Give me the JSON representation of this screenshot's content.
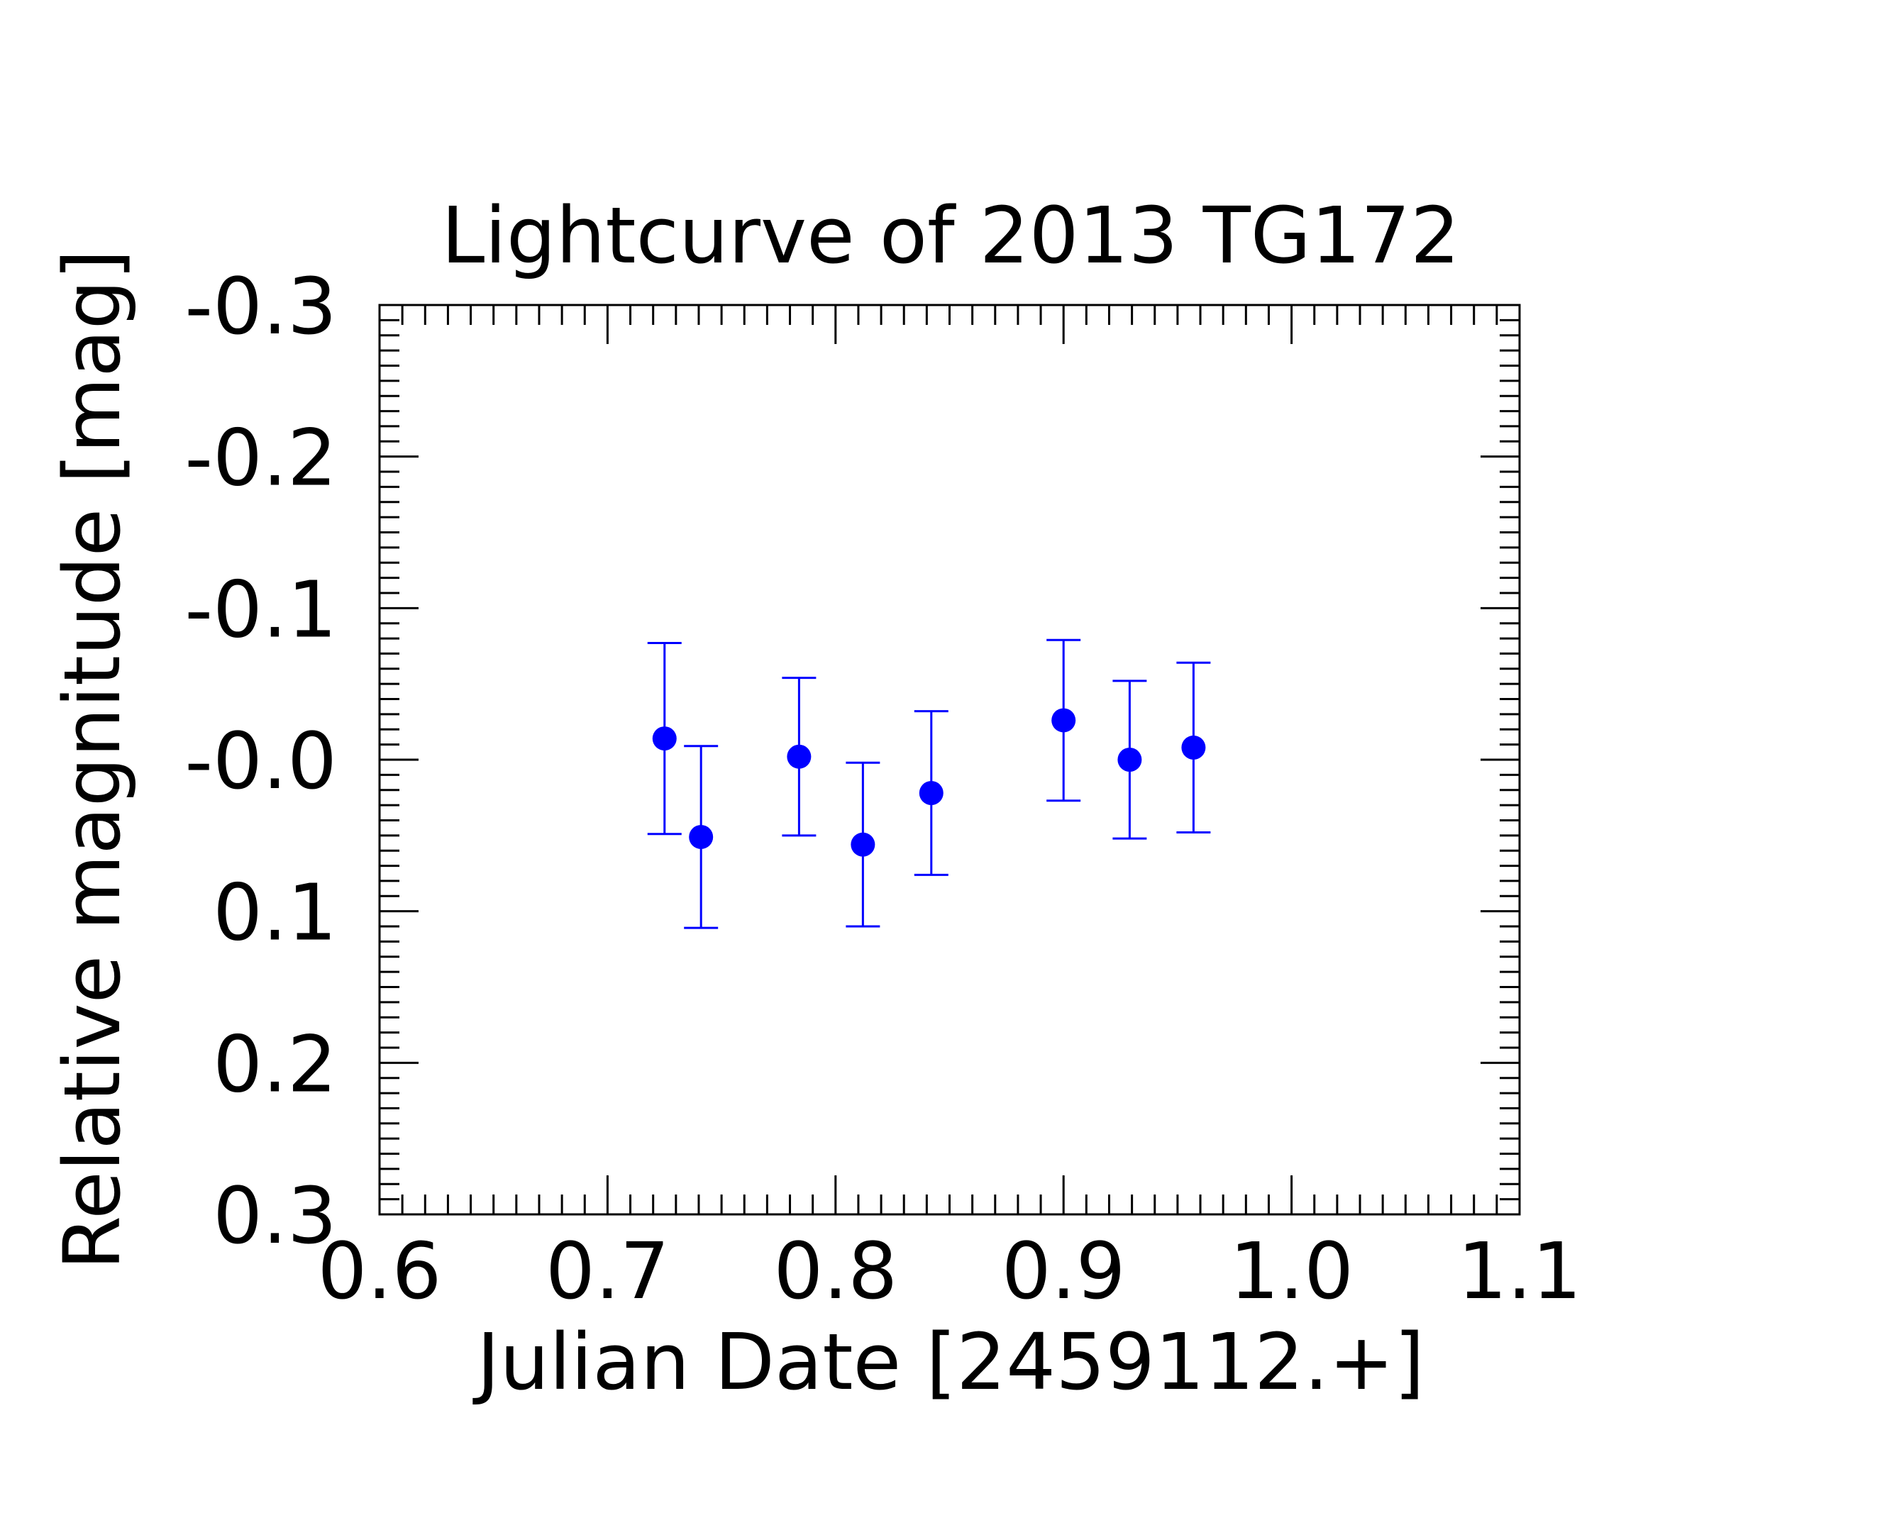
{
  "chart_data": {
    "type": "scatter",
    "title": "Lightcurve of 2013 TG172",
    "xlabel": "Julian Date [2459112.+]",
    "ylabel": "Relative magnitude [mag]",
    "xlim": [
      0.6,
      1.1
    ],
    "ylim": [
      0.3,
      -0.3
    ],
    "y_inverted": true,
    "grid": false,
    "legend": "none",
    "marker_color": "#0000ff",
    "x_ticks": [
      0.6,
      0.7,
      0.8,
      0.9,
      1.0,
      1.1
    ],
    "x_tick_labels": [
      "0.6",
      "0.7",
      "0.8",
      "0.9",
      "1.0",
      "1.1"
    ],
    "y_ticks": [
      -0.3,
      -0.2,
      -0.1,
      0.0,
      0.1,
      0.2,
      0.3
    ],
    "y_tick_labels": [
      "-0.3",
      "-0.2",
      "-0.1",
      "-0.0",
      "0.1",
      "0.2",
      "0.3"
    ],
    "series": [
      {
        "x": [
          0.725,
          0.741,
          0.784,
          0.812,
          0.842,
          0.9,
          0.929,
          0.957
        ],
        "y": [
          -0.014,
          0.051,
          -0.002,
          0.056,
          0.022,
          -0.026,
          0.0,
          -0.008
        ],
        "yerr": [
          0.063,
          0.06,
          0.052,
          0.054,
          0.054,
          0.053,
          0.052,
          0.056
        ]
      }
    ]
  }
}
